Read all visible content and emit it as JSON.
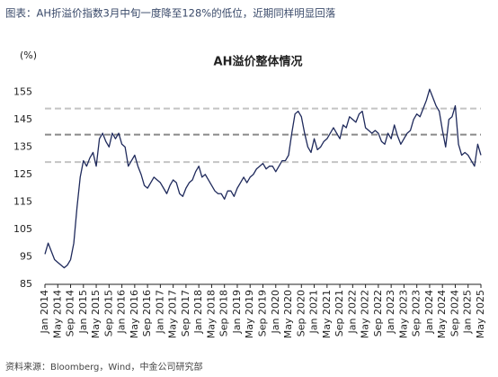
{
  "header": "图表：AH折溢价指数3月中旬一度降至128%的低位，近期同样明显回落",
  "source": "资料来源：Bloomberg，Wind，中金公司研究部",
  "chart_data": {
    "type": "line",
    "title": "AH溢价整体情况",
    "y_unit": "(%)",
    "categories": [
      "Jan 2014",
      null,
      null,
      null,
      "May 2014",
      null,
      null,
      null,
      "Sep 2014",
      null,
      null,
      null,
      "Jan 2015",
      null,
      null,
      null,
      "May 2015",
      null,
      null,
      null,
      "Sep 2015",
      null,
      null,
      null,
      "Jan 2016",
      null,
      null,
      null,
      "May 2016",
      null,
      null,
      null,
      "Sep 2016",
      null,
      null,
      null,
      "Jan 2017",
      null,
      null,
      null,
      "May 2017",
      null,
      null,
      null,
      "Sep 2017",
      null,
      null,
      null,
      "Jan 2018",
      null,
      null,
      null,
      "May 2018",
      null,
      null,
      null,
      "Sep 2018",
      null,
      null,
      null,
      "Jan 2019",
      null,
      null,
      null,
      "May 2019",
      null,
      null,
      null,
      "Sep 2019",
      null,
      null,
      null,
      "Jan 2020",
      null,
      null,
      null,
      "May 2020",
      null,
      null,
      null,
      "Sep 2020",
      null,
      null,
      null,
      "Jan 2021",
      null,
      null,
      null,
      "May 2021",
      null,
      null,
      null,
      "Sep 2021",
      null,
      null,
      null,
      "Jan 2022",
      null,
      null,
      null,
      "May 2022",
      null,
      null,
      null,
      "Sep 2022",
      null,
      null,
      null,
      "Jan 2023",
      null,
      null,
      null,
      "May 2023",
      null,
      null,
      null,
      "Sep 2023",
      null,
      null,
      null,
      "Jan 2024",
      null,
      null,
      null,
      "May 2024",
      null,
      null,
      null,
      "Sep 2024",
      null,
      null,
      null,
      "Jan 2025",
      null,
      null,
      null,
      "May 2025"
    ],
    "values": [
      96,
      100,
      97,
      94,
      93,
      92,
      91,
      92,
      94,
      100,
      113,
      124,
      130,
      128,
      131,
      133,
      128,
      138,
      140,
      137,
      135,
      140,
      138,
      140,
      136,
      135,
      128,
      130,
      132,
      128,
      125,
      121,
      120,
      122,
      124,
      123,
      122,
      120,
      118,
      121,
      123,
      122,
      118,
      117,
      120,
      122,
      123,
      126,
      128,
      124,
      125,
      123,
      121,
      119,
      118,
      118,
      116,
      119,
      119,
      117,
      120,
      122,
      124,
      122,
      124,
      125,
      127,
      128,
      129,
      127,
      128,
      128,
      126,
      128,
      130,
      130,
      132,
      140,
      147,
      148,
      146,
      140,
      135,
      133,
      138,
      134,
      135,
      137,
      138,
      140,
      142,
      140,
      138,
      143,
      142,
      146,
      145,
      144,
      147,
      148,
      142,
      141,
      140,
      141,
      140,
      137,
      136,
      140,
      138,
      143,
      139,
      136,
      138,
      140,
      141,
      145,
      147,
      146,
      149,
      152,
      156,
      153,
      150,
      148,
      141,
      135,
      145,
      146,
      150,
      136,
      132,
      133,
      132,
      130,
      128,
      136,
      132
    ],
    "color": "#1f2a5c",
    "reference_lines": [
      {
        "value": 149,
        "color": "#c4c4c4"
      },
      {
        "value": 139.5,
        "color": "#8a8a8a"
      },
      {
        "value": 129.5,
        "color": "#c4c4c4"
      }
    ],
    "ylim": [
      85,
      160
    ],
    "yticks": [
      85,
      95,
      105,
      115,
      125,
      135,
      145,
      155
    ]
  }
}
